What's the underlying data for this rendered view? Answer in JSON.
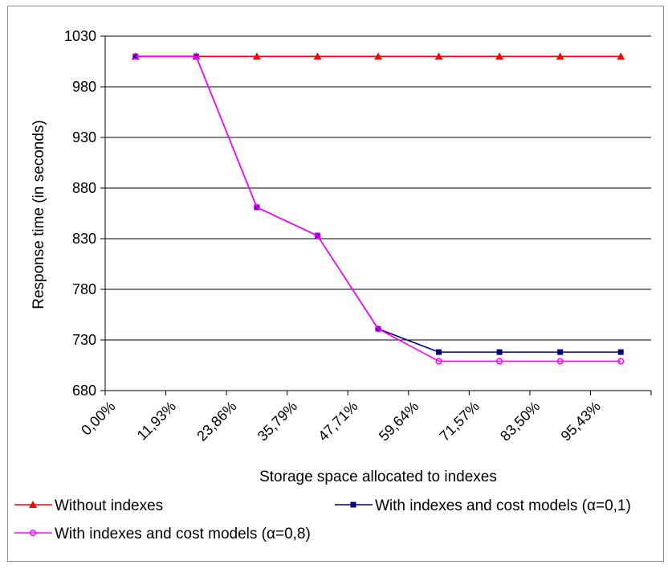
{
  "chart_data": {
    "type": "line",
    "title": "",
    "xlabel": "Storage space allocated to indexes",
    "ylabel": "Response time (in seconds)",
    "ylim": [
      680,
      1030
    ],
    "yticks": [
      "680",
      "730",
      "780",
      "830",
      "880",
      "930",
      "980",
      "1030"
    ],
    "categories": [
      "0,00%",
      "11,93%",
      "23,86%",
      "35,79%",
      "47,71%",
      "59,64%",
      "71,57%",
      "83,50%",
      "95,43%"
    ],
    "grid": "horizontal",
    "legend_position": "bottom",
    "series": [
      {
        "name": "Without indexes",
        "color": "#ff0000",
        "marker": "triangle",
        "values": [
          1010,
          1010,
          1010,
          1010,
          1010,
          1010,
          1010,
          1010,
          1010
        ]
      },
      {
        "name": "With indexes and cost models (α=0,1)",
        "color": "#000080",
        "marker": "square",
        "values": [
          1010,
          1010,
          861,
          833,
          741,
          718,
          718,
          718,
          718
        ]
      },
      {
        "name": "With indexes and cost models (α=0,8)",
        "color": "#ff00ff",
        "marker": "circle",
        "values": [
          1010,
          1010,
          861,
          833,
          741,
          709,
          709,
          709,
          709
        ]
      }
    ]
  }
}
